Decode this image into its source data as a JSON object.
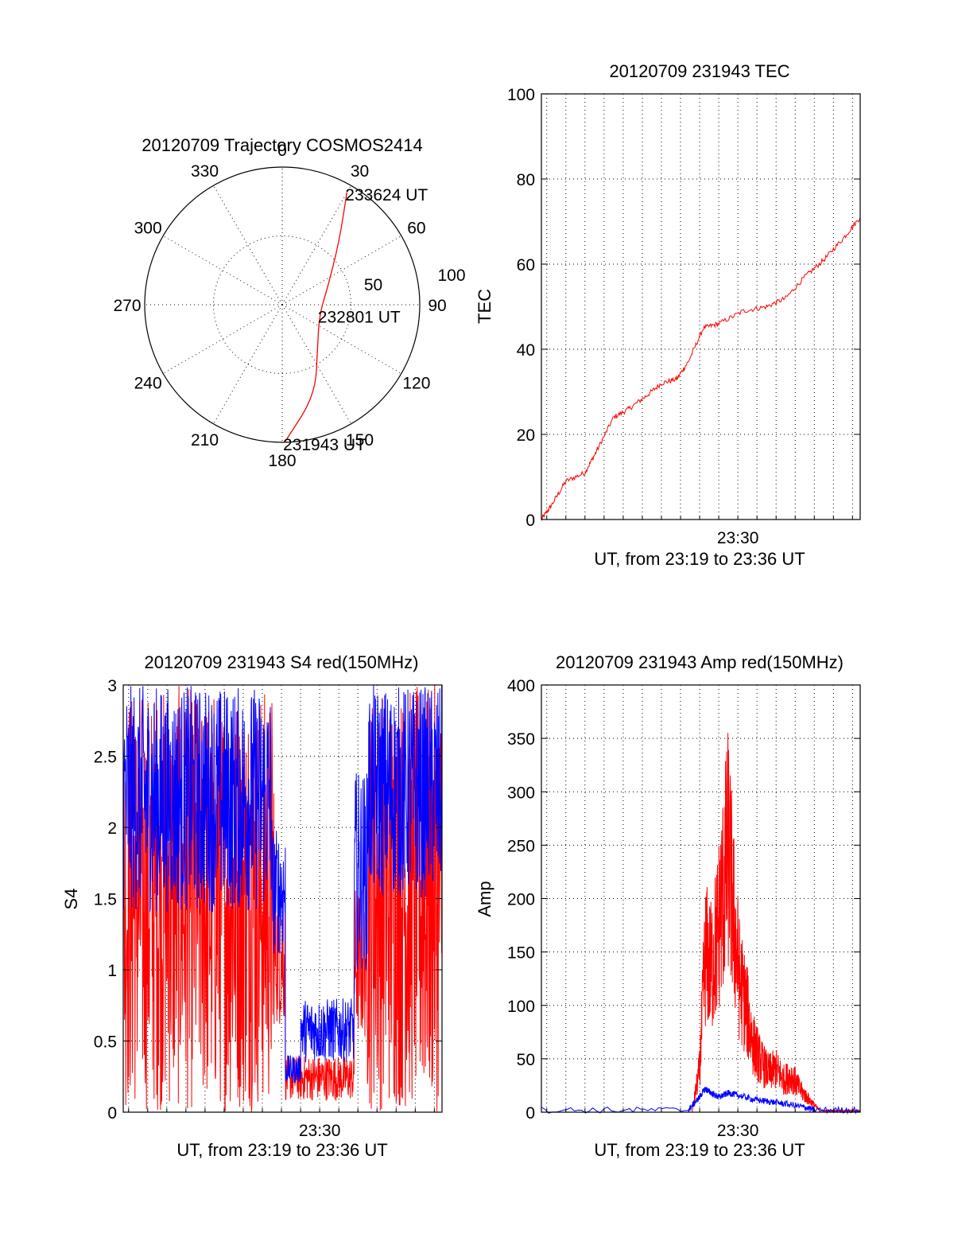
{
  "colors": {
    "red": "#ff0000",
    "blue": "#0000ff",
    "axis": "#000000"
  },
  "chart_data": [
    {
      "id": "trajectory",
      "type": "scatter",
      "title": "20120709 Trajectory COSMOS2414",
      "azimuth_labels": [
        "0",
        "30",
        "60",
        "90",
        "120",
        "150",
        "180",
        "210",
        "240",
        "270",
        "300",
        "330"
      ],
      "ring_labels": [
        "50",
        "100"
      ],
      "ring_values": [
        50,
        100
      ],
      "series": [
        {
          "color": "red",
          "points": [
            {
              "az": 179,
              "zen": 100
            },
            {
              "az": 160,
              "zen": 70
            },
            {
              "az": 140,
              "zen": 40
            },
            {
              "az": 105,
              "zen": 28
            },
            {
              "az": 70,
              "zen": 35
            },
            {
              "az": 42,
              "zen": 62
            },
            {
              "az": 30,
              "zen": 94
            }
          ]
        }
      ],
      "annotations": [
        {
          "text": "233624 UT",
          "az": 30,
          "zen": 94
        },
        {
          "text": "232801 UT",
          "az": 105,
          "zen": 28
        },
        {
          "text": "231943 UT",
          "az": 179,
          "zen": 100
        }
      ]
    },
    {
      "id": "tec",
      "type": "line",
      "title": "20120709 231943 TEC",
      "xlabel": "UT, from 23:19 to 23:36 UT",
      "ylabel": "TEC",
      "ylim": [
        0,
        100
      ],
      "xlim_min": [
        19.72,
        36.4
      ],
      "ytick_values": [
        0,
        20,
        40,
        60,
        80,
        100
      ],
      "ytick_labels": [
        "0",
        "20",
        "40",
        "60",
        "80",
        "100"
      ],
      "xtick_values": [
        30
      ],
      "xtick_labels": [
        "23:30"
      ],
      "grid": true,
      "series": [
        {
          "color": "red",
          "x": [
            19.72,
            20.2,
            21.0,
            22.0,
            22.6,
            23.5,
            24.3,
            25.2,
            26.0,
            26.8,
            27.4,
            28.2,
            29.0,
            30.3,
            31.5,
            32.5,
            33.5,
            34.5,
            35.5,
            36.4
          ],
          "y": [
            0,
            3,
            9,
            11,
            16,
            24,
            26,
            29,
            32,
            33,
            37,
            45,
            46,
            49,
            50,
            52,
            57,
            61,
            66,
            71
          ]
        }
      ]
    },
    {
      "id": "s4",
      "type": "line",
      "title": "20120709 231943 S4 red(150MHz)",
      "xlabel": "UT, from 23:19 to 23:36 UT",
      "ylabel": "S4",
      "ylim": [
        0,
        3
      ],
      "xlim_min": [
        19.72,
        36.4
      ],
      "ytick_values": [
        0,
        0.5,
        1,
        1.5,
        2,
        2.5,
        3
      ],
      "ytick_labels": [
        "0",
        "0.5",
        "1",
        "1.5",
        "2",
        "2.5",
        "3"
      ],
      "xtick_values": [
        30
      ],
      "xtick_labels": [
        "23:30"
      ],
      "grid": true,
      "series": [
        {
          "color": "red",
          "segments": [
            {
              "x0": 19.72,
              "x1": 27.6,
              "ymin": 0,
              "ymax": 3
            },
            {
              "x0": 27.6,
              "x1": 28.2,
              "ymin": 0.6,
              "ymax": 1.6
            },
            {
              "x0": 28.2,
              "x1": 31.8,
              "ymin": 0.08,
              "ymax": 0.4
            },
            {
              "x0": 31.8,
              "x1": 32.5,
              "ymin": 0.5,
              "ymax": 1.6
            },
            {
              "x0": 32.5,
              "x1": 36.4,
              "ymin": 0,
              "ymax": 3
            }
          ]
        },
        {
          "color": "blue",
          "segments": [
            {
              "x0": 19.72,
              "x1": 27.5,
              "ymin": 1.4,
              "ymax": 3
            },
            {
              "x0": 27.5,
              "x1": 28.2,
              "ymin": 1.1,
              "ymax": 2.0
            },
            {
              "x0": 28.2,
              "x1": 29.0,
              "ymin": 0.2,
              "ymax": 0.4
            },
            {
              "x0": 29.0,
              "x1": 31.8,
              "ymin": 0.35,
              "ymax": 0.8
            },
            {
              "x0": 31.8,
              "x1": 32.5,
              "ymin": 1.0,
              "ymax": 2.4
            },
            {
              "x0": 32.5,
              "x1": 36.4,
              "ymin": 1.5,
              "ymax": 3
            }
          ]
        }
      ]
    },
    {
      "id": "amp",
      "type": "line",
      "title": "20120709 231943 Amp red(150MHz)",
      "xlabel": "UT, from 23:19 to 23:36 UT",
      "ylabel": "Amp",
      "ylim": [
        0,
        400
      ],
      "xlim_min": [
        19.72,
        36.4
      ],
      "ytick_values": [
        0,
        50,
        100,
        150,
        200,
        250,
        300,
        350,
        400
      ],
      "ytick_labels": [
        "0",
        "50",
        "100",
        "150",
        "200",
        "250",
        "300",
        "350",
        "400"
      ],
      "xtick_values": [
        30
      ],
      "xtick_labels": [
        "23:30"
      ],
      "grid": true,
      "series": [
        {
          "color": "red",
          "x": [
            27.6,
            28.0,
            28.3,
            28.6,
            28.9,
            29.2,
            29.5,
            29.8,
            30.1,
            30.4,
            30.8,
            31.2,
            31.6,
            32.0,
            32.4,
            32.8,
            33.3,
            33.8,
            34.3,
            36.4
          ],
          "y": [
            0,
            60,
            220,
            200,
            240,
            300,
            365,
            260,
            180,
            150,
            95,
            70,
            55,
            60,
            45,
            50,
            30,
            15,
            2,
            2
          ]
        },
        {
          "color": "blue",
          "x": [
            19.72,
            27.4,
            27.9,
            28.3,
            28.6,
            29.0,
            29.5,
            30.0,
            30.8,
            31.6,
            32.4,
            33.4,
            34.0,
            36.4
          ],
          "y": [
            2,
            2,
            12,
            22,
            18,
            14,
            18,
            16,
            12,
            10,
            8,
            5,
            2,
            2
          ]
        }
      ]
    }
  ]
}
